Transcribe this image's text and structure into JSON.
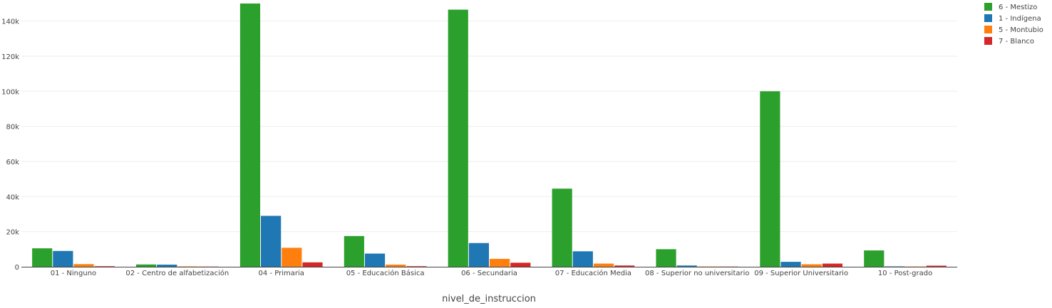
{
  "chart_data": {
    "type": "bar",
    "xlabel": "nivel_de_instruccion",
    "ylabel": "",
    "ylim": [
      0,
      152000
    ],
    "yticks": [
      0,
      20000,
      40000,
      60000,
      80000,
      100000,
      120000,
      140000
    ],
    "ytick_labels": [
      "0",
      "20k",
      "40k",
      "60k",
      "80k",
      "100k",
      "120k",
      "140k"
    ],
    "grid": true,
    "legend_position": "top-right",
    "categories": [
      "01 - Ninguno",
      "02 - Centro de alfabetización",
      "04 - Primaria",
      "05 - Educación Básica",
      "06 - Secundaria",
      "07 - Educación  Media",
      "08 - Superior no universitario",
      "09 - Superior Universitario",
      "10 - Post-grado"
    ],
    "series": [
      {
        "name": "6 - Mestizo",
        "color": "#2ca02c",
        "values": [
          10500,
          1300,
          150000,
          17500,
          146500,
          44500,
          10000,
          100000,
          9300
        ]
      },
      {
        "name": "1 - Indígena",
        "color": "#1f77b4",
        "values": [
          9000,
          1200,
          29000,
          7500,
          13500,
          8800,
          700,
          2800,
          200
        ]
      },
      {
        "name": "5 - Montubio",
        "color": "#ff7f0e",
        "values": [
          1500,
          200,
          10800,
          1200,
          4500,
          1800,
          150,
          1400,
          150
        ]
      },
      {
        "name": "7 - Blanco",
        "color": "#d62728",
        "values": [
          300,
          100,
          2500,
          300,
          2300,
          700,
          100,
          1800,
          600
        ]
      }
    ]
  }
}
